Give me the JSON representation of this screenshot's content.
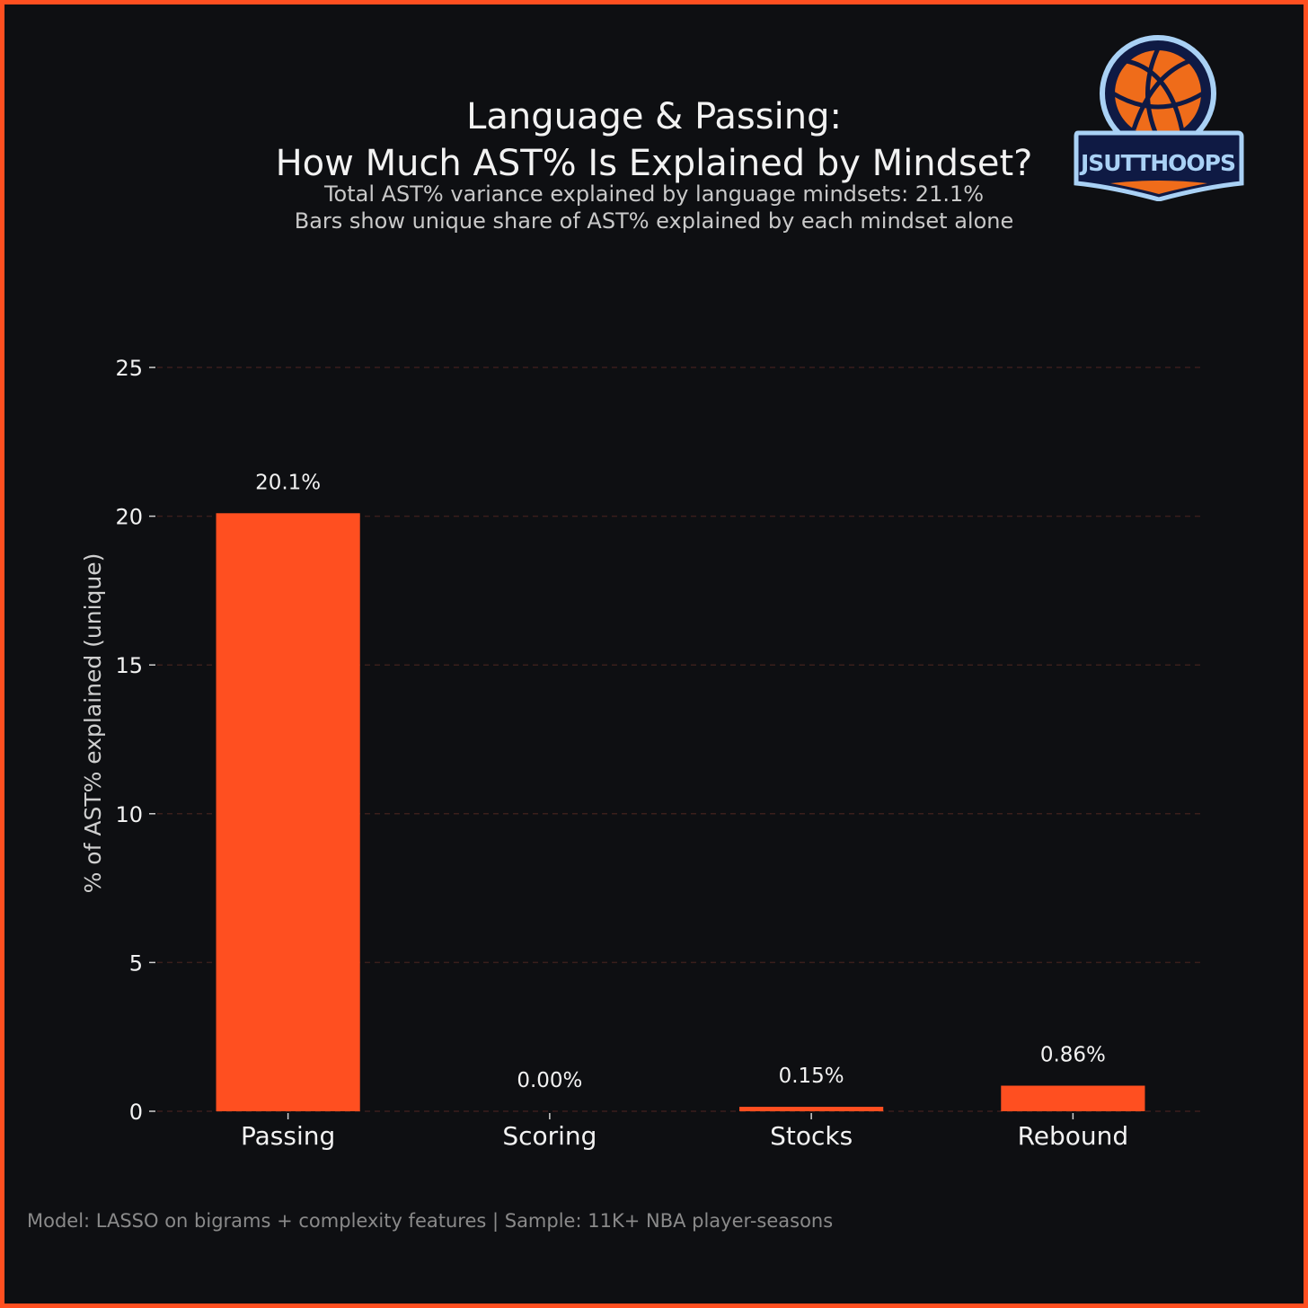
{
  "header": {
    "title_line_1": "Language & Passing:",
    "title_line_2": "How Much AST% Is Explained by Mindset?",
    "subtitle_line_1": "Total AST% variance explained by language mindsets: 21.1%",
    "subtitle_line_2": "Bars show unique share of AST% explained by each mindset alone"
  },
  "logo": {
    "text": "JSUTTHOOPS"
  },
  "footnote": "Model: LASSO on bigrams + complexity features | Sample: 11K+ NBA player-seasons",
  "colors": {
    "background": "#0e0f12",
    "border": "#ff4f20",
    "bar": "#ff4f20",
    "grid": "#3a1f1c",
    "text": "#f2f2f2"
  },
  "chart_data": {
    "type": "bar",
    "title": "Language & Passing: How Much AST% Is Explained by Mindset?",
    "categories": [
      "Passing",
      "Scoring",
      "Stocks",
      "Rebound"
    ],
    "values": [
      20.1,
      0.0,
      0.15,
      0.86
    ],
    "data_labels": [
      "20.1%",
      "0.00%",
      "0.15%",
      "0.86%"
    ],
    "xlabel": "",
    "ylabel": "% of AST% explained (unique)",
    "ylim": [
      0,
      25
    ],
    "yticks": [
      0,
      5,
      10,
      15,
      20,
      25
    ],
    "grid": "horizontal dashed"
  }
}
